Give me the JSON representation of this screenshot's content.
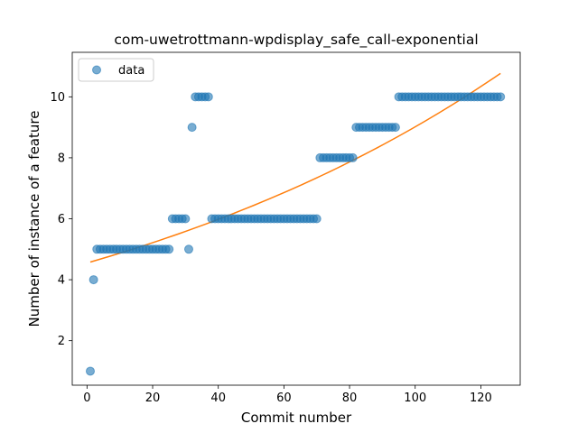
{
  "chart_data": {
    "type": "scatter",
    "title": "com-uwetrottmann-wpdisplay_safe_call-exponential",
    "xlabel": "Commit number",
    "ylabel": "Number of instance of a feature",
    "xlim": [
      -4.5,
      132
    ],
    "ylim": [
      0.54,
      11.46
    ],
    "x_ticks": [
      0,
      20,
      40,
      60,
      80,
      100,
      120
    ],
    "y_ticks": [
      2,
      4,
      6,
      8,
      10
    ],
    "grid": false,
    "legend": {
      "position": "top-left",
      "entries": [
        "data"
      ]
    },
    "series": [
      {
        "name": "data",
        "kind": "scatter",
        "color": "#1f77b4",
        "x": [
          1,
          2,
          3,
          4,
          5,
          6,
          7,
          8,
          9,
          10,
          11,
          12,
          13,
          14,
          15,
          16,
          17,
          18,
          19,
          20,
          21,
          22,
          23,
          24,
          25,
          26,
          27,
          28,
          29,
          30,
          31,
          32,
          33,
          34,
          35,
          36,
          37,
          38,
          39,
          40,
          41,
          42,
          43,
          44,
          45,
          46,
          47,
          48,
          49,
          50,
          51,
          52,
          53,
          54,
          55,
          56,
          57,
          58,
          59,
          60,
          61,
          62,
          63,
          64,
          65,
          66,
          67,
          68,
          69,
          70,
          71,
          72,
          73,
          74,
          75,
          76,
          77,
          78,
          79,
          80,
          81,
          82,
          83,
          84,
          85,
          86,
          87,
          88,
          89,
          90,
          91,
          92,
          93,
          94,
          95,
          96,
          97,
          98,
          99,
          100,
          101,
          102,
          103,
          104,
          105,
          106,
          107,
          108,
          109,
          110,
          111,
          112,
          113,
          114,
          115,
          116,
          117,
          118,
          119,
          120,
          121,
          122,
          123,
          124,
          125,
          126
        ],
        "y": [
          1,
          4,
          5,
          5,
          5,
          5,
          5,
          5,
          5,
          5,
          5,
          5,
          5,
          5,
          5,
          5,
          5,
          5,
          5,
          5,
          5,
          5,
          5,
          5,
          5,
          6,
          6,
          6,
          6,
          6,
          5,
          9,
          10,
          10,
          10,
          10,
          10,
          6,
          6,
          6,
          6,
          6,
          6,
          6,
          6,
          6,
          6,
          6,
          6,
          6,
          6,
          6,
          6,
          6,
          6,
          6,
          6,
          6,
          6,
          6,
          6,
          6,
          6,
          6,
          6,
          6,
          6,
          6,
          6,
          6,
          8,
          8,
          8,
          8,
          8,
          8,
          8,
          8,
          8,
          8,
          8,
          9,
          9,
          9,
          9,
          9,
          9,
          9,
          9,
          9,
          9,
          9,
          9,
          9,
          10,
          10,
          10,
          10,
          10,
          10,
          10,
          10,
          10,
          10,
          10,
          10,
          10,
          10,
          10,
          10,
          10,
          10,
          10,
          10,
          10,
          10,
          10,
          10,
          10,
          10,
          10,
          10,
          10,
          10,
          10,
          10
        ]
      },
      {
        "name": "",
        "kind": "line",
        "color": "#ff7f0e",
        "x": [
          1,
          126
        ],
        "y": [
          4.58,
          10.77
        ],
        "curve": "exponential"
      }
    ]
  }
}
